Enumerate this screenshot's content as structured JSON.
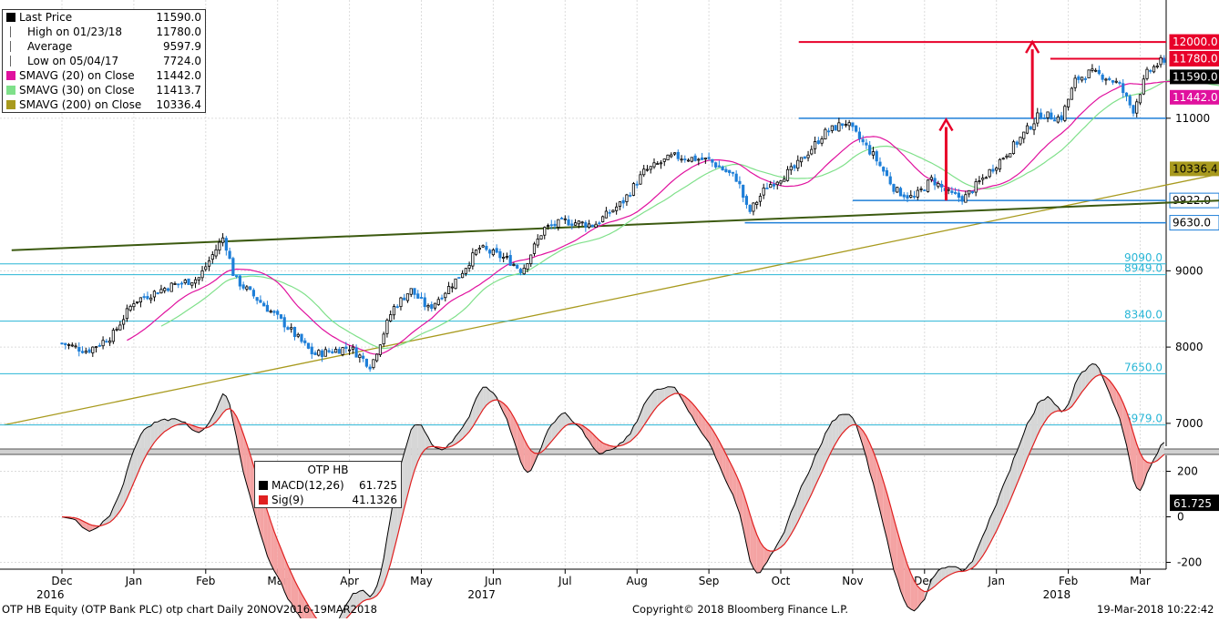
{
  "legend_main": [
    {
      "label": "Last Price",
      "value": "11590.0",
      "color": "#000000",
      "icon": "square"
    },
    {
      "label": "High on 01/23/18",
      "value": "11780.0",
      "color": "#666666",
      "icon": "high-marker"
    },
    {
      "label": "Average",
      "value": "9597.9",
      "color": "#666666",
      "icon": "average-marker"
    },
    {
      "label": "Low on 05/04/17",
      "value": "7724.0",
      "color": "#666666",
      "icon": "low-marker"
    },
    {
      "label": "SMAVG (20) on Close",
      "value": "11442.0",
      "color": "#e0119e",
      "icon": "square"
    },
    {
      "label": "SMAVG (30) on Close",
      "value": "11413.7",
      "color": "#7fe08a",
      "icon": "square"
    },
    {
      "label": "SMAVG (200) on Close",
      "value": "10336.4",
      "color": "#a89a1e",
      "icon": "square"
    }
  ],
  "legend_macd": {
    "title": "OTP HB",
    "items": [
      {
        "label": "MACD(12,26)",
        "value": "61.725",
        "color": "#000000"
      },
      {
        "label": "Sig(9)",
        "value": "41.1326",
        "color": "#e02020"
      }
    ]
  },
  "footer": {
    "left": "OTP HB Equity (OTP Bank PLC) otp chart  Daily 20NOV2016-19MAR2018",
    "center": "Copyright© 2018 Bloomberg Finance L.P.",
    "right": "19-Mar-2018 10:22:42"
  },
  "colors": {
    "up": "#ffffff",
    "down": "#1e7fd8",
    "sma20": "#e0119e",
    "sma30": "#7fe08a",
    "sma200": "#a89a1e",
    "trend": "#3c5a10",
    "resistance": "#e8002a",
    "support": "#1e7fd8",
    "fib": "#29b6d6"
  },
  "chart_data": [
    {
      "type": "line",
      "subtype": "candlestick",
      "ylim": [
        6700,
        12550
      ],
      "yticks": [
        7000,
        8000,
        9000,
        11000
      ],
      "x_month_labels": [
        "Dec",
        "Jan",
        "Feb",
        "Mar",
        "Apr",
        "May",
        "Jun",
        "Jul",
        "Aug",
        "Sep",
        "Oct",
        "Nov",
        "Dec",
        "Jan",
        "Feb",
        "Mar"
      ],
      "x_year_labels": [
        {
          "label": "2016",
          "month_index": 0
        },
        {
          "label": "2017",
          "month_index": 6
        },
        {
          "label": "2018",
          "month_index": 14
        }
      ],
      "price_keypoints": [
        [
          0,
          8050
        ],
        [
          0.35,
          7950
        ],
        [
          0.7,
          8150
        ],
        [
          1.0,
          8600
        ],
        [
          1.5,
          8800
        ],
        [
          1.9,
          8900
        ],
        [
          2.25,
          9450
        ],
        [
          2.4,
          8900
        ],
        [
          2.75,
          8600
        ],
        [
          3.1,
          8300
        ],
        [
          3.5,
          7900
        ],
        [
          4.0,
          8000
        ],
        [
          4.3,
          7750
        ],
        [
          4.6,
          8500
        ],
        [
          4.85,
          8750
        ],
        [
          5.1,
          8500
        ],
        [
          5.5,
          8900
        ],
        [
          5.8,
          9300
        ],
        [
          6.2,
          9150
        ],
        [
          6.4,
          9000
        ],
        [
          6.7,
          9550
        ],
        [
          7.0,
          9650
        ],
        [
          7.4,
          9600
        ],
        [
          7.8,
          9900
        ],
        [
          8.1,
          10300
        ],
        [
          8.5,
          10500
        ],
        [
          9.0,
          10450
        ],
        [
          9.4,
          10200
        ],
        [
          9.55,
          9750
        ],
        [
          9.8,
          10100
        ],
        [
          10.2,
          10350
        ],
        [
          10.6,
          10800
        ],
        [
          10.9,
          10950
        ],
        [
          11.3,
          10500
        ],
        [
          11.6,
          10050
        ],
        [
          11.85,
          9950
        ],
        [
          12.1,
          10200
        ],
        [
          12.35,
          10000
        ],
        [
          12.55,
          9950
        ],
        [
          12.9,
          10300
        ],
        [
          13.3,
          10700
        ],
        [
          13.6,
          11050
        ],
        [
          13.9,
          11000
        ],
        [
          14.1,
          11500
        ],
        [
          14.3,
          11600
        ],
        [
          14.5,
          11550
        ],
        [
          14.7,
          11450
        ],
        [
          14.9,
          11100
        ],
        [
          15.1,
          11600
        ],
        [
          15.3,
          11750
        ],
        [
          15.55,
          11400
        ],
        [
          15.8,
          11450
        ],
        [
          16.0,
          11200
        ],
        [
          16.3,
          11500
        ],
        [
          16.45,
          11590
        ]
      ],
      "series": [
        {
          "name": "Last Price",
          "kind": "candlestick"
        },
        {
          "name": "SMAVG (20) on Close",
          "window": 20
        },
        {
          "name": "SMAVG (30) on Close",
          "window": 30
        },
        {
          "name": "SMAVG (200) on Close",
          "start": 6980,
          "end": 10336.4
        }
      ],
      "horizontal_levels": [
        {
          "value": 12000.0,
          "label": "12000.0",
          "style": "resistance"
        },
        {
          "value": 11780.0,
          "label": "11780.0",
          "style": "resistance"
        },
        {
          "value": 11000.0,
          "label": "",
          "style": "support"
        },
        {
          "value": 9922.0,
          "label": "9922.0",
          "style": "support"
        },
        {
          "value": 9630.0,
          "label": "9630.0",
          "style": "support"
        },
        {
          "value": 9090.0,
          "label": "9090.0",
          "style": "fib"
        },
        {
          "value": 8949.0,
          "label": "8949.0",
          "style": "fib"
        },
        {
          "value": 8340.0,
          "label": "8340.0",
          "style": "fib"
        },
        {
          "value": 7650.0,
          "label": "7650.0",
          "style": "fib"
        },
        {
          "value": 6979.0,
          "label": "6979.0",
          "style": "fib"
        }
      ],
      "price_tags": [
        {
          "value": 11590.0,
          "label": "11590.0",
          "style": "last"
        },
        {
          "value": 11442.0,
          "label": "11442.0",
          "style": "sma20"
        },
        {
          "value": 10336.4,
          "label": "10336.4",
          "style": "sma200"
        }
      ],
      "trendline": {
        "from": [
          -0.7,
          9270
        ],
        "to": [
          16.85,
          9950
        ]
      },
      "target_arrows": [
        {
          "x": 12.3,
          "from": 9922,
          "to": 10980
        },
        {
          "x": 13.5,
          "from": 10990,
          "to": 12000
        }
      ]
    },
    {
      "type": "line",
      "title": "OTP HB",
      "ylim": [
        -230,
        270
      ],
      "yticks": [
        200,
        0,
        -200
      ],
      "series": [
        {
          "name": "MACD(12,26)",
          "last": 61.725
        },
        {
          "name": "Sig(9)",
          "last": 41.1326
        }
      ],
      "last_tag": "61.725"
    }
  ]
}
